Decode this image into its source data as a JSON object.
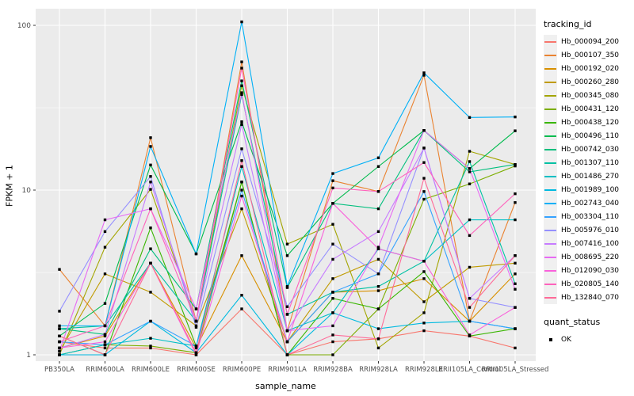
{
  "chart_data": {
    "type": "line",
    "title": "",
    "xlabel": "sample_name",
    "ylabel": "FPKM + 1",
    "yscale": "log10",
    "ylim": [
      1,
      126
    ],
    "yticks": [
      1,
      10,
      100
    ],
    "grid": "on",
    "panel_color": "#EBEBEB",
    "grid_color": "#FFFFFF",
    "tick_text_color": "#4D4D4D",
    "marker": "black-square",
    "legend_position": "right",
    "legend_title": "tracking_id",
    "quant_legend": {
      "title": "quant_status",
      "items": [
        {
          "label": "OK",
          "marker": "square",
          "color": "#000000"
        }
      ]
    },
    "categories": [
      "PB350LA",
      "RRIM600LA",
      "RRIM600LE",
      "RRIM600SE",
      "RRIM600PE",
      "RRIM901LA",
      "RRIM928BA",
      "RRIM928LA",
      "RRIM928LE",
      "RRII105LA_Control",
      "RRII105LA_Stressed"
    ],
    "series": [
      {
        "name": "Hb_000094_200",
        "color": "#F8766D",
        "values": [
          1.2,
          1.1,
          1.1,
          1.0,
          1.9,
          1.0,
          1.2,
          1.25,
          1.4,
          1.3,
          1.1
        ]
      },
      {
        "name": "Hb_000107_350",
        "color": "#EA8331",
        "values": [
          3.3,
          1.5,
          20.8,
          1.6,
          60,
          1.4,
          11.4,
          9.8,
          49.8,
          1.6,
          8.4
        ]
      },
      {
        "name": "Hb_000192_020",
        "color": "#D89000",
        "values": [
          1.1,
          1.3,
          3.6,
          1.1,
          4.0,
          1.2,
          2.4,
          2.45,
          2.9,
          1.6,
          3.1
        ]
      },
      {
        "name": "Hb_000260_280",
        "color": "#C09B00",
        "values": [
          1.05,
          3.1,
          2.4,
          1.5,
          7.7,
          1.2,
          2.9,
          3.8,
          2.1,
          3.4,
          3.6
        ]
      },
      {
        "name": "Hb_000345_080",
        "color": "#A3A500",
        "values": [
          1.0,
          4.5,
          10.1,
          1.6,
          43,
          4.7,
          6.2,
          1.1,
          1.8,
          17.2,
          14.3
        ]
      },
      {
        "name": "Hb_000431_120",
        "color": "#7CAE00",
        "values": [
          1.0,
          1.15,
          1.13,
          1.03,
          11.2,
          1.0,
          1.0,
          1.9,
          8.8,
          10.9,
          14.0
        ]
      },
      {
        "name": "Hb_000438_120",
        "color": "#39B600",
        "values": [
          1.3,
          1.0,
          5.9,
          1.13,
          11.2,
          1.0,
          2.2,
          1.9,
          3.2,
          1.3,
          1.44
        ]
      },
      {
        "name": "Hb_000496_110",
        "color": "#00BB4E",
        "values": [
          1.3,
          2.05,
          14.2,
          4.1,
          26,
          4.0,
          8.3,
          13.9,
          23,
          13.5,
          22.9
        ]
      },
      {
        "name": "Hb_000742_030",
        "color": "#00BF7D",
        "values": [
          1.44,
          1.33,
          4.4,
          1.9,
          46,
          2.56,
          8.3,
          7.7,
          23,
          12.9,
          14.3
        ]
      },
      {
        "name": "Hb_001307_110",
        "color": "#00C1A3",
        "values": [
          1.44,
          1.5,
          3.6,
          1.6,
          38,
          1.76,
          2.4,
          2.6,
          3.7,
          14.9,
          2.7
        ]
      },
      {
        "name": "Hb_001486_270",
        "color": "#00BFC4",
        "values": [
          1.0,
          1.15,
          1.26,
          1.13,
          13.9,
          1.4,
          1.8,
          4.4,
          3.7,
          6.6,
          6.6
        ]
      },
      {
        "name": "Hb_001989_100",
        "color": "#00BAE0",
        "values": [
          1.0,
          1.0,
          1.6,
          1.03,
          2.3,
          1.0,
          1.8,
          1.44,
          1.56,
          1.6,
          1.44
        ]
      },
      {
        "name": "Hb_002743_040",
        "color": "#00B0F6",
        "values": [
          1.5,
          1.5,
          18.4,
          4.1,
          105,
          2.6,
          12.6,
          15.7,
          51.5,
          27.6,
          27.8
        ]
      },
      {
        "name": "Hb_003304_110",
        "color": "#35A2FF",
        "values": [
          1.2,
          1.15,
          1.6,
          1.13,
          10,
          1.2,
          2.4,
          3.1,
          9.8,
          1.6,
          1.44
        ]
      },
      {
        "name": "Hb_005976_010",
        "color": "#9590FF",
        "values": [
          1.84,
          5.6,
          12.1,
          1.47,
          17.8,
          1.96,
          4.7,
          3.1,
          18,
          2.2,
          1.94
        ]
      },
      {
        "name": "Hb_007416_100",
        "color": "#C77CFF",
        "values": [
          1.1,
          1.33,
          11.2,
          1.6,
          25,
          1.4,
          3.8,
          5.6,
          18,
          2.2,
          4.0
        ]
      },
      {
        "name": "Hb_008695_220",
        "color": "#E76BF3",
        "values": [
          1.05,
          6.6,
          7.7,
          1.9,
          39,
          1.4,
          1.5,
          4.5,
          23,
          13.5,
          2.5
        ]
      },
      {
        "name": "Hb_012090_030",
        "color": "#FA62DB",
        "values": [
          1.1,
          1.2,
          3.6,
          1.0,
          9.2,
          1.2,
          8.3,
          4.4,
          3.7,
          1.32,
          1.94
        ]
      },
      {
        "name": "Hb_020805_140",
        "color": "#FF62BC",
        "values": [
          1.2,
          1.5,
          7.7,
          1.6,
          55,
          1.76,
          10.3,
          9.8,
          14.7,
          5.3,
          9.5
        ]
      },
      {
        "name": "Hb_132840_070",
        "color": "#FF6A98",
        "values": [
          1.3,
          1.0,
          3.6,
          1.03,
          15.1,
          1.0,
          1.32,
          1.25,
          11.8,
          1.94,
          4.0
        ]
      }
    ]
  }
}
